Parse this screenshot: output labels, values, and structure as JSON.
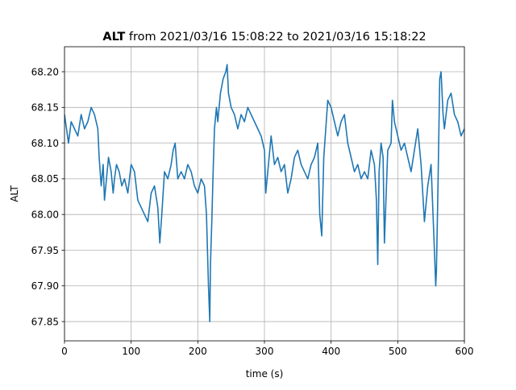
{
  "chart_data": {
    "type": "line",
    "title_bold": "ALT",
    "title_rest": " from 2021/03/16 15:08:22 to 2021/03/16 15:18:22",
    "xlabel": "time (s)",
    "ylabel": "ALT",
    "xlim": [
      0,
      600
    ],
    "ylim": [
      67.823,
      68.235
    ],
    "xticks": [
      0,
      100,
      200,
      300,
      400,
      500,
      600
    ],
    "xtick_labels": [
      "0",
      "100",
      "200",
      "300",
      "400",
      "500",
      "600"
    ],
    "yticks": [
      67.85,
      67.9,
      67.95,
      68.0,
      68.05,
      68.1,
      68.15,
      68.2
    ],
    "ytick_labels": [
      "67.85",
      "67.90",
      "67.95",
      "68.00",
      "68.05",
      "68.10",
      "68.15",
      "68.20"
    ],
    "grid": true,
    "color": "#1f77b4",
    "series": [
      {
        "x": [
          0,
          3,
          6,
          10,
          15,
          20,
          25,
          30,
          35,
          40,
          45,
          50,
          52,
          55,
          58,
          60,
          63,
          66,
          70,
          73,
          75,
          78,
          82,
          86,
          90,
          95,
          100,
          105,
          110,
          115,
          120,
          125,
          130,
          135,
          140,
          143,
          146,
          150,
          155,
          160,
          163,
          166,
          170,
          175,
          180,
          185,
          190,
          195,
          200,
          205,
          210,
          213,
          216,
          218,
          219,
          221,
          223,
          225,
          228,
          230,
          234,
          238,
          242,
          244,
          246,
          250,
          255,
          260,
          265,
          270,
          275,
          280,
          285,
          290,
          295,
          300,
          302,
          305,
          310,
          315,
          320,
          325,
          330,
          335,
          340,
          345,
          350,
          355,
          360,
          365,
          370,
          375,
          380,
          383,
          386,
          389,
          392,
          395,
          400,
          405,
          410,
          415,
          420,
          425,
          430,
          435,
          440,
          445,
          450,
          455,
          460,
          465,
          468,
          470,
          472,
          475,
          478,
          480,
          485,
          490,
          492,
          495,
          500,
          505,
          510,
          515,
          520,
          525,
          530,
          535,
          540,
          545,
          550,
          555,
          557,
          558,
          560,
          563,
          565,
          568,
          570,
          575,
          580,
          585,
          590,
          595,
          600
        ],
        "values": [
          68.14,
          68.12,
          68.1,
          68.13,
          68.12,
          68.11,
          68.14,
          68.12,
          68.13,
          68.15,
          68.14,
          68.12,
          68.08,
          68.04,
          68.07,
          68.02,
          68.05,
          68.08,
          68.06,
          68.03,
          68.05,
          68.07,
          68.06,
          68.04,
          68.05,
          68.03,
          68.07,
          68.06,
          68.02,
          68.01,
          68.0,
          67.99,
          68.03,
          68.04,
          68.01,
          67.96,
          68.0,
          68.06,
          68.05,
          68.07,
          68.09,
          68.1,
          68.05,
          68.06,
          68.05,
          68.07,
          68.06,
          68.04,
          68.03,
          68.05,
          68.04,
          68.0,
          67.9,
          67.85,
          67.93,
          67.99,
          68.06,
          68.12,
          68.15,
          68.13,
          68.17,
          68.19,
          68.2,
          68.21,
          68.17,
          68.15,
          68.14,
          68.12,
          68.14,
          68.13,
          68.15,
          68.14,
          68.13,
          68.12,
          68.11,
          68.09,
          68.03,
          68.06,
          68.11,
          68.07,
          68.08,
          68.06,
          68.07,
          68.03,
          68.05,
          68.08,
          68.09,
          68.07,
          68.06,
          68.05,
          68.07,
          68.08,
          68.1,
          68.0,
          67.97,
          68.08,
          68.12,
          68.16,
          68.15,
          68.13,
          68.11,
          68.13,
          68.14,
          68.1,
          68.08,
          68.06,
          68.07,
          68.05,
          68.06,
          68.05,
          68.09,
          68.07,
          68.02,
          67.93,
          68.06,
          68.1,
          68.08,
          67.96,
          68.09,
          68.1,
          68.16,
          68.13,
          68.11,
          68.09,
          68.1,
          68.08,
          68.06,
          68.09,
          68.12,
          68.07,
          67.99,
          68.04,
          68.07,
          67.95,
          67.9,
          67.92,
          68.02,
          68.19,
          68.2,
          68.14,
          68.12,
          68.16,
          68.17,
          68.14,
          68.13,
          68.11,
          68.12
        ]
      }
    ]
  }
}
